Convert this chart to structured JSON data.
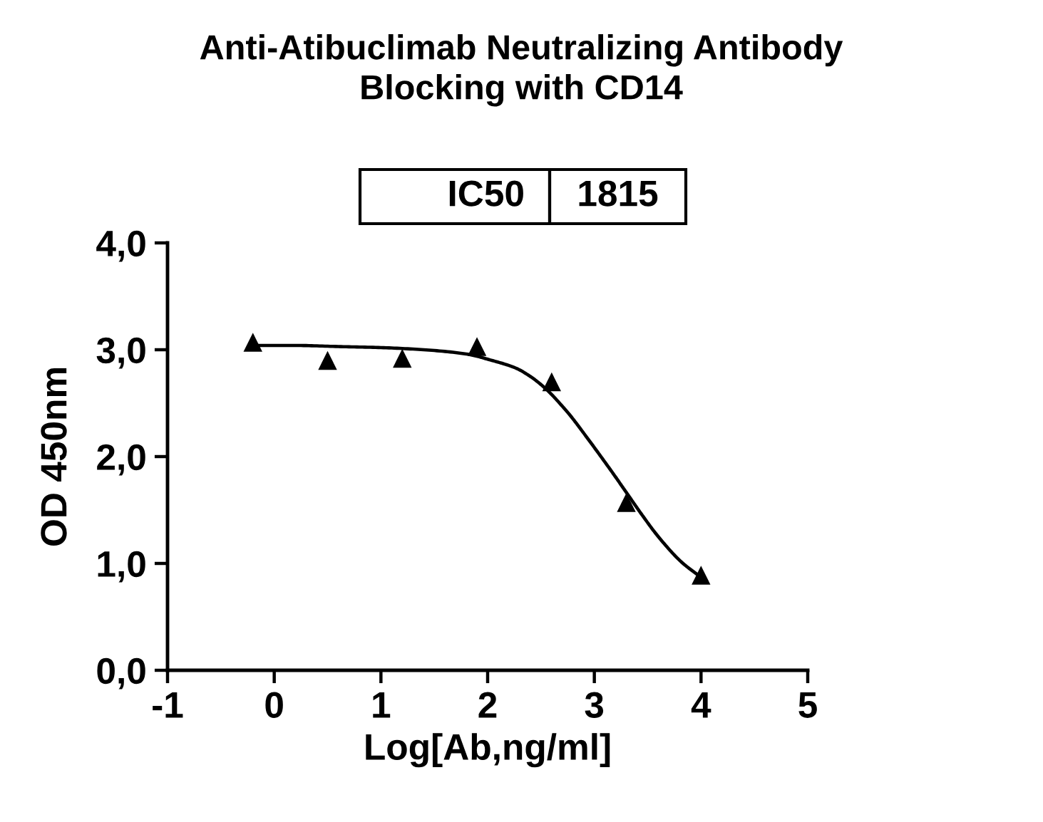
{
  "chart_data": {
    "type": "scatter",
    "title": "Anti-Atibuclimab Neutralizing Antibody\nBlocking with CD14",
    "xlabel": "Log[Ab,ng/ml]",
    "ylabel": "OD 450nm",
    "annotations": [
      "IC50",
      "1815"
    ],
    "xlim": [
      -1,
      5
    ],
    "xticks": [
      -1,
      0,
      1,
      2,
      3,
      4,
      5
    ],
    "ylim": [
      0,
      4
    ],
    "yticks": [
      {
        "value": 0,
        "label": "0,0"
      },
      {
        "value": 1,
        "label": "1,0"
      },
      {
        "value": 2,
        "label": "2,0"
      },
      {
        "value": 3,
        "label": "3,0"
      },
      {
        "value": 4,
        "label": "4,0"
      }
    ],
    "grid": false,
    "marker": "triangle",
    "series": [
      {
        "color": "#000000",
        "x": [
          -0.2,
          0.5,
          1.2,
          1.9,
          2.6,
          3.3,
          4.0
        ],
        "values": [
          3.07,
          2.9,
          2.92,
          3.03,
          2.7,
          1.57,
          0.89
        ]
      },
      {
        "type": "line",
        "color": "#000000",
        "marker": "none",
        "line_style": "solid",
        "x": [
          -0.2,
          0.2,
          0.6,
          1.0,
          1.4,
          1.8,
          2.04,
          2.26,
          2.4,
          2.55,
          2.71,
          2.77,
          2.9,
          3.04,
          3.17,
          3.31,
          3.45,
          3.6,
          3.82,
          4.0
        ],
        "values": [
          3.04,
          3.04,
          3.03,
          3.02,
          3.0,
          2.96,
          2.9,
          2.83,
          2.75,
          2.63,
          2.46,
          2.39,
          2.22,
          2.03,
          1.85,
          1.65,
          1.45,
          1.25,
          1.01,
          0.87
        ]
      }
    ]
  }
}
